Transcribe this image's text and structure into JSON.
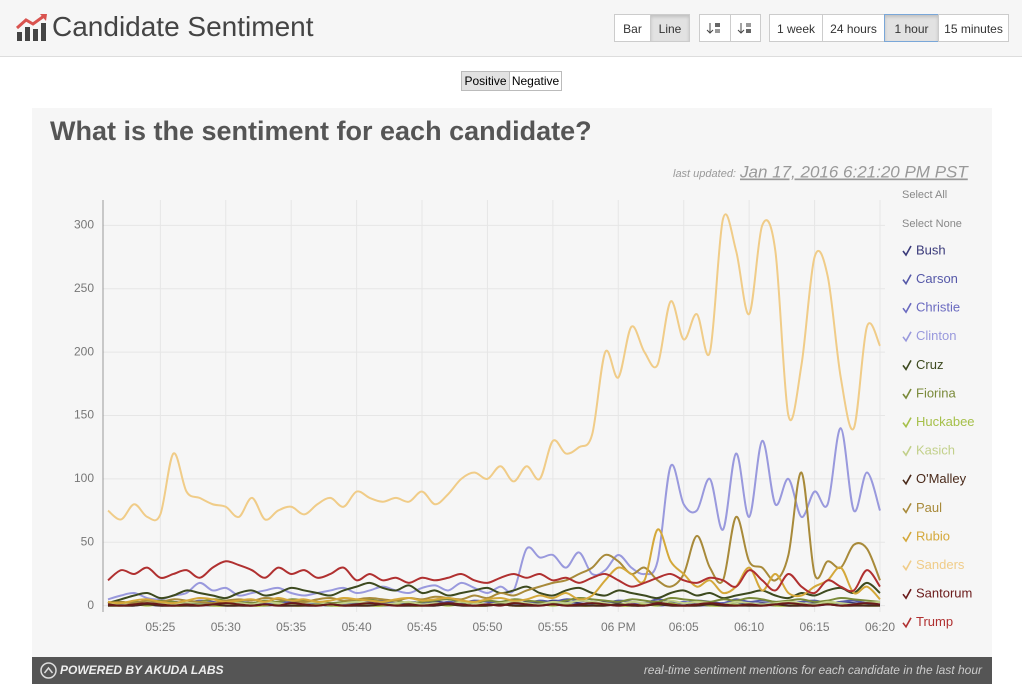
{
  "header": {
    "title": "Candidate Sentiment",
    "chart_types": [
      "Bar",
      "Line"
    ],
    "ranges": [
      "1 week",
      "24 hours",
      "1 hour",
      "15 minutes"
    ]
  },
  "toggles": [
    "Positive",
    "Negative"
  ],
  "chart_data": {
    "type": "line",
    "title": "What is the sentiment for each candidate?",
    "last_updated_label": "last updated:",
    "last_updated": "Jan 17, 2016 6:21:20 PM PST",
    "select_all": "Select All",
    "select_none": "Select None",
    "categories": [
      null,
      null,
      null,
      null,
      "05:25",
      null,
      null,
      null,
      null,
      "05:30",
      null,
      null,
      null,
      null,
      "05:35",
      null,
      null,
      null,
      null,
      "05:40",
      null,
      null,
      null,
      null,
      "05:45",
      null,
      null,
      null,
      null,
      "05:50",
      null,
      null,
      null,
      null,
      "05:55",
      null,
      null,
      null,
      null,
      "06 PM",
      null,
      null,
      null,
      null,
      "06:05",
      null,
      null,
      null,
      null,
      "06:10",
      null,
      null,
      null,
      null,
      "06:15",
      null,
      null,
      null,
      null,
      "06:20"
    ],
    "ylim": [
      -5,
      320
    ],
    "yticks": [
      0,
      50,
      100,
      150,
      200,
      250,
      300
    ],
    "grid": true,
    "series": [
      {
        "name": "Bush",
        "color": "#3a3a7a",
        "values": [
          0,
          1,
          2,
          1,
          0,
          1,
          2,
          1,
          0,
          1,
          2,
          1,
          0,
          1,
          2,
          3,
          1,
          0,
          1,
          2,
          1,
          0,
          1,
          2,
          1,
          3,
          2,
          1,
          0,
          1,
          2,
          1,
          3,
          2,
          4,
          3,
          2,
          1,
          3,
          2,
          1,
          2,
          3,
          1,
          2,
          0,
          1,
          2,
          3,
          1,
          2,
          1,
          0,
          1,
          2,
          1,
          3,
          2,
          1,
          0
        ]
      },
      {
        "name": "Carson",
        "color": "#5558a8",
        "values": [
          1,
          2,
          3,
          2,
          1,
          3,
          2,
          4,
          3,
          2,
          3,
          2,
          1,
          2,
          3,
          4,
          3,
          2,
          1,
          2,
          3,
          4,
          2,
          3,
          2,
          1,
          3,
          2,
          4,
          3,
          2,
          3,
          2,
          4,
          3,
          5,
          4,
          3,
          2,
          4,
          3,
          2,
          5,
          3,
          2,
          4,
          3,
          2,
          5,
          3,
          4,
          3,
          2,
          3,
          4,
          2,
          3,
          4,
          2,
          3
        ]
      },
      {
        "name": "Christie",
        "color": "#6a6ac0",
        "values": [
          0,
          1,
          0,
          2,
          1,
          0,
          1,
          2,
          1,
          0,
          1,
          0,
          2,
          1,
          0,
          1,
          2,
          0,
          1,
          0,
          1,
          2,
          1,
          0,
          1,
          0,
          2,
          1,
          0,
          1,
          2,
          1,
          0,
          1,
          2,
          1,
          0,
          2,
          1,
          0,
          1,
          2,
          0,
          1,
          3,
          1,
          0,
          2,
          1,
          0,
          1,
          0,
          2,
          1,
          0,
          1,
          2,
          1,
          0,
          1
        ]
      },
      {
        "name": "Clinton",
        "color": "#9999dd",
        "values": [
          5,
          8,
          10,
          6,
          5,
          8,
          10,
          18,
          12,
          14,
          8,
          10,
          12,
          14,
          10,
          8,
          10,
          12,
          14,
          10,
          12,
          15,
          12,
          10,
          14,
          16,
          12,
          18,
          14,
          10,
          15,
          12,
          45,
          38,
          40,
          30,
          42,
          25,
          28,
          40,
          30,
          25,
          35,
          110,
          80,
          75,
          100,
          60,
          120,
          70,
          130,
          80,
          100,
          70,
          90,
          80,
          140,
          75,
          105,
          75
        ]
      },
      {
        "name": "Cruz",
        "color": "#3d4a1f",
        "values": [
          2,
          5,
          8,
          10,
          6,
          8,
          12,
          10,
          8,
          6,
          10,
          12,
          8,
          10,
          14,
          12,
          10,
          8,
          12,
          15,
          18,
          14,
          12,
          16,
          10,
          12,
          8,
          10,
          12,
          14,
          10,
          12,
          15,
          10,
          8,
          12,
          14,
          10,
          8,
          12,
          10,
          8,
          6,
          10,
          12,
          8,
          10,
          6,
          8,
          10,
          12,
          8,
          6,
          10,
          8,
          12,
          14,
          10,
          18,
          10
        ]
      },
      {
        "name": "Fiorina",
        "color": "#7a8a3a",
        "values": [
          1,
          2,
          3,
          2,
          4,
          3,
          2,
          3,
          5,
          4,
          3,
          2,
          4,
          3,
          5,
          4,
          3,
          2,
          3,
          4,
          5,
          3,
          4,
          2,
          3,
          4,
          5,
          3,
          2,
          4,
          3,
          5,
          4,
          3,
          2,
          4,
          6,
          5,
          4,
          3,
          5,
          4,
          3,
          6,
          5,
          4,
          3,
          5,
          4,
          6,
          5,
          3,
          4,
          5,
          3,
          4,
          6,
          5,
          4,
          3
        ]
      },
      {
        "name": "Huckabee",
        "color": "#a6c04a",
        "values": [
          0,
          0,
          1,
          0,
          1,
          0,
          0,
          1,
          0,
          0,
          1,
          0,
          0,
          1,
          0,
          0,
          1,
          0,
          0,
          1,
          0,
          0,
          1,
          0,
          0,
          1,
          0,
          1,
          0,
          0,
          1,
          0,
          0,
          1,
          0,
          1,
          0,
          0,
          1,
          0,
          0,
          1,
          0,
          2,
          0,
          1,
          0,
          0,
          1,
          0,
          1,
          0,
          0,
          1,
          0,
          2,
          0,
          1,
          0,
          0
        ]
      },
      {
        "name": "Kasich",
        "color": "#c2d08a",
        "values": [
          1,
          2,
          1,
          3,
          2,
          1,
          2,
          3,
          2,
          1,
          2,
          1,
          3,
          2,
          1,
          2,
          3,
          1,
          2,
          3,
          2,
          1,
          2,
          3,
          1,
          2,
          1,
          3,
          2,
          1,
          2,
          3,
          2,
          1,
          3,
          2,
          4,
          3,
          2,
          1,
          3,
          2,
          1,
          4,
          2,
          3,
          2,
          1,
          3,
          2,
          1,
          2,
          3,
          2,
          1,
          3,
          2,
          1,
          2,
          3
        ]
      },
      {
        "name": "O'Malley",
        "color": "#4a2a1a",
        "values": [
          0,
          0,
          0,
          1,
          0,
          0,
          0,
          0,
          1,
          0,
          0,
          0,
          1,
          0,
          0,
          0,
          0,
          1,
          0,
          0,
          0,
          1,
          0,
          0,
          0,
          0,
          1,
          0,
          0,
          0,
          1,
          0,
          0,
          0,
          1,
          0,
          0,
          0,
          0,
          1,
          0,
          0,
          1,
          0,
          0,
          0,
          1,
          0,
          0,
          0,
          0,
          1,
          0,
          0,
          0,
          1,
          0,
          0,
          0,
          0
        ]
      },
      {
        "name": "Paul",
        "color": "#a88a3a",
        "values": [
          2,
          3,
          2,
          4,
          3,
          5,
          4,
          3,
          2,
          4,
          5,
          4,
          6,
          5,
          4,
          3,
          5,
          6,
          4,
          5,
          6,
          5,
          4,
          6,
          5,
          7,
          6,
          5,
          8,
          6,
          10,
          8,
          12,
          15,
          18,
          20,
          25,
          30,
          40,
          35,
          25,
          30,
          20,
          15,
          25,
          55,
          30,
          20,
          70,
          35,
          30,
          20,
          40,
          105,
          25,
          35,
          30,
          48,
          45,
          20
        ]
      },
      {
        "name": "Rubio",
        "color": "#d4a83a",
        "values": [
          3,
          2,
          4,
          5,
          3,
          2,
          4,
          6,
          5,
          3,
          4,
          5,
          3,
          6,
          4,
          5,
          3,
          4,
          6,
          5,
          4,
          3,
          5,
          6,
          4,
          5,
          6,
          4,
          3,
          5,
          6,
          4,
          5,
          8,
          6,
          10,
          5,
          8,
          20,
          30,
          25,
          20,
          60,
          35,
          25,
          15,
          20,
          10,
          15,
          30,
          12,
          25,
          10,
          8,
          15,
          20,
          30,
          10,
          15,
          5
        ]
      },
      {
        "name": "Sanders",
        "color": "#f0cc88",
        "values": [
          75,
          68,
          80,
          70,
          72,
          120,
          90,
          85,
          80,
          78,
          70,
          85,
          68,
          75,
          78,
          72,
          80,
          85,
          78,
          90,
          85,
          82,
          85,
          82,
          90,
          80,
          88,
          100,
          105,
          100,
          110,
          98,
          110,
          100,
          130,
          120,
          125,
          135,
          200,
          180,
          220,
          200,
          190,
          240,
          210,
          230,
          200,
          305,
          280,
          230,
          300,
          280,
          150,
          190,
          275,
          260,
          180,
          140,
          220,
          205
        ]
      },
      {
        "name": "Santorum",
        "color": "#6a1a1a",
        "values": [
          1,
          0,
          1,
          2,
          1,
          0,
          1,
          0,
          1,
          2,
          1,
          0,
          1,
          0,
          2,
          1,
          0,
          1,
          0,
          1,
          2,
          1,
          0,
          1,
          0,
          1,
          2,
          1,
          0,
          1,
          0,
          2,
          1,
          0,
          1,
          0,
          1,
          2,
          1,
          0,
          1,
          0,
          2,
          1,
          0,
          1,
          2,
          1,
          0,
          1,
          0,
          1,
          2,
          1,
          0,
          1,
          0,
          1,
          2,
          1
        ]
      },
      {
        "name": "Trump",
        "color": "#b03030",
        "values": [
          20,
          28,
          25,
          30,
          22,
          25,
          28,
          22,
          30,
          35,
          32,
          28,
          22,
          30,
          25,
          28,
          22,
          25,
          30,
          20,
          25,
          20,
          22,
          18,
          22,
          20,
          22,
          25,
          20,
          18,
          22,
          25,
          22,
          25,
          20,
          22,
          18,
          22,
          25,
          20,
          15,
          18,
          22,
          25,
          20,
          18,
          22,
          20,
          15,
          28,
          20,
          12,
          25,
          15,
          10,
          20,
          15,
          12,
          28,
          15
        ]
      }
    ]
  },
  "footer": {
    "powered": "POWERED BY AKUDA LABS",
    "tagline": "real-time sentiment mentions for each candidate in the last hour"
  }
}
